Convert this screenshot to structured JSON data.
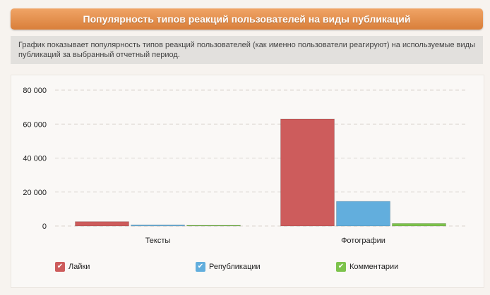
{
  "header": {
    "title": "Популярность типов реакций пользователей на виды публикаций"
  },
  "description": {
    "text": "График показывает популярность типов реакций пользователей (как именно пользователи реагируют) на используемые виды публикаций за выбранный отчетный период."
  },
  "icons": {
    "legend_check": "checkmark-icon"
  },
  "chart_data": {
    "type": "bar",
    "title": "",
    "xlabel": "",
    "ylabel": "",
    "categories": [
      "Тексты",
      "Фотографии"
    ],
    "series": [
      {
        "name": "Лайки",
        "values": [
          2600,
          63000
        ],
        "color": "#cd5c5c"
      },
      {
        "name": "Републикации",
        "values": [
          600,
          14500
        ],
        "color": "#62aedd"
      },
      {
        "name": "Комментарии",
        "values": [
          300,
          1500
        ],
        "color": "#7dc34c"
      }
    ],
    "ylim": [
      0,
      80000
    ],
    "yticks": [
      0,
      20000,
      40000,
      60000,
      80000
    ],
    "ytick_labels": [
      "0",
      "20 000",
      "40 000",
      "60 000",
      "80 000"
    ],
    "grid": true,
    "legend_position": "bottom"
  }
}
